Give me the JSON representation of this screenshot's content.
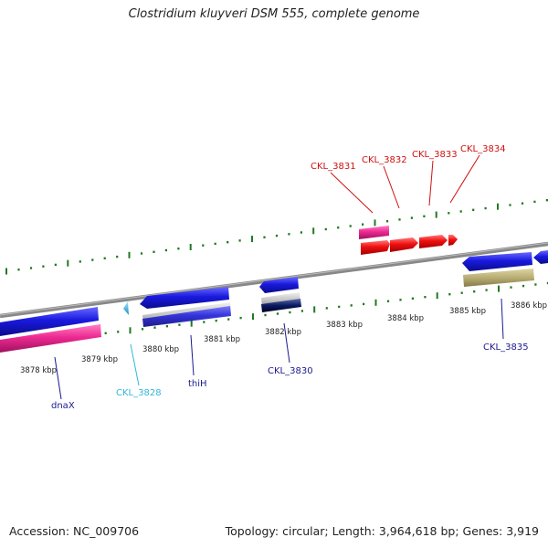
{
  "title": "Clostridium kluyveri DSM 555, complete genome",
  "footer": {
    "accession": "Accession: NC_009706",
    "summary": "Topology: circular; Length: 3,964,618 bp; Genes: 3,919"
  },
  "ruler_labels": [
    "3878 kbp",
    "3879 kbp",
    "3880 kbp",
    "3881 kbp",
    "3882 kbp",
    "3883 kbp",
    "3884 kbp",
    "3885 kbp",
    "3886 kbp"
  ],
  "gene_labels": {
    "ckl_3831": "CKL_3831",
    "ckl_3832": "CKL_3832",
    "ckl_3833": "CKL_3833",
    "ckl_3834": "CKL_3834",
    "dnax": "dnaX",
    "ckl_3828": "CKL_3828",
    "thih": "thiH",
    "ckl_3830": "CKL_3830",
    "ckl_3835": "CKL_3835"
  },
  "colors": {
    "cds_blue": "#1a1adb",
    "rrna_pink": "#e8288f",
    "highlight_red": "#f01010",
    "trna_cyan": "#3ab8e0",
    "misc_khaki": "#b9ae74",
    "grey_band": "#bdbdbd",
    "navy_band": "#0a1a60",
    "backbone": "#8a8a8a",
    "tick_green": "#1f7a1f",
    "label_red": "#d01010",
    "label_navy": "#1a1a90",
    "label_cyan": "#30b8d8"
  }
}
